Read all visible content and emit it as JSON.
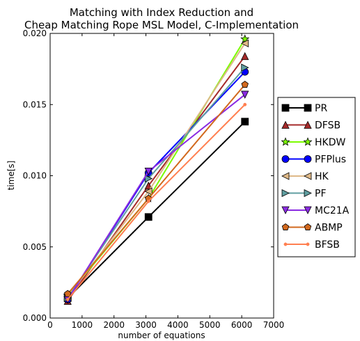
{
  "chart_data": {
    "type": "line",
    "title_line1": "Matching with Index Reduction and",
    "title_line2": "Cheap Matching Rope MSL Model, C-Implementation",
    "xlabel": "number of equations",
    "ylabel": "time[s]",
    "xlim": [
      0,
      7000
    ],
    "ylim": [
      0.0,
      0.02
    ],
    "xticks": [
      0,
      1000,
      2000,
      3000,
      4000,
      5000,
      6000,
      7000
    ],
    "xtick_labels": [
      "0",
      "1000",
      "2000",
      "3000",
      "4000",
      "5000",
      "6000",
      "7000"
    ],
    "yticks": [
      0.0,
      0.005,
      0.01,
      0.015,
      0.02
    ],
    "ytick_labels": [
      "0.000",
      "0.005",
      "0.010",
      "0.015",
      "0.020"
    ],
    "grid": false,
    "legend_position": "right, outside plot",
    "x": [
      550,
      3080,
      6100
    ],
    "series": [
      {
        "name": "PR",
        "color": "#000000",
        "marker": "square",
        "values": [
          0.0014,
          0.0071,
          0.0138
        ]
      },
      {
        "name": "DFSB",
        "color": "#a52a2a",
        "marker": "triangle-up",
        "values": [
          0.0012,
          0.0093,
          0.0184
        ]
      },
      {
        "name": "HKDW",
        "color": "#7cfc00",
        "marker": "star",
        "values": [
          0.0016,
          0.0084,
          0.0196
        ]
      },
      {
        "name": "PFPlus",
        "color": "#0000ff",
        "marker": "circle",
        "values": [
          0.0013,
          0.0102,
          0.0173
        ]
      },
      {
        "name": "HK",
        "color": "#deb887",
        "marker": "triangle-left",
        "values": [
          0.0015,
          0.0089,
          0.0193
        ]
      },
      {
        "name": "PF",
        "color": "#5f9ea0",
        "marker": "triangle-right",
        "values": [
          0.0014,
          0.0098,
          0.0176
        ]
      },
      {
        "name": "MC21A",
        "color": "#8a2be2",
        "marker": "triangle-down",
        "values": [
          0.0013,
          0.0103,
          0.0157
        ]
      },
      {
        "name": "ABMP",
        "color": "#d2691e",
        "marker": "pentagon",
        "values": [
          0.0017,
          0.0084,
          0.0164
        ]
      },
      {
        "name": "BFSB",
        "color": "#ff7f50",
        "marker": "dot",
        "values": [
          0.0013,
          0.0082,
          0.015
        ]
      }
    ]
  }
}
